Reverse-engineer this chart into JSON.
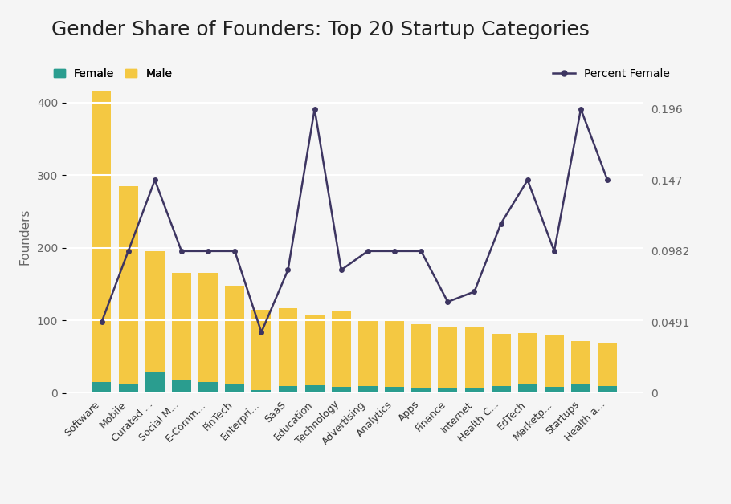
{
  "title": "Gender Share of Founders: Top 20 Startup Categories",
  "categories": [
    "Software",
    "Mobile",
    "Curated ...",
    "Social M...",
    "E-Comm...",
    "FinTech",
    "Enterpri...",
    "SaaS",
    "Education",
    "Technology",
    "Advertising",
    "Analytics",
    "Apps",
    "Finance",
    "Internet",
    "Health C...",
    "EdTech",
    "Marketp...",
    "Startups",
    "Health a..."
  ],
  "female_vals": [
    15,
    12,
    28,
    18,
    15,
    13,
    4,
    10,
    11,
    9,
    10,
    9,
    7,
    6,
    6,
    10,
    13,
    9,
    12,
    10
  ],
  "male_vals": [
    400,
    273,
    167,
    148,
    150,
    135,
    111,
    107,
    97,
    103,
    93,
    91,
    88,
    84,
    84,
    72,
    70,
    71,
    60,
    58
  ],
  "pct_female": [
    0.049,
    0.098,
    0.147,
    0.098,
    0.098,
    0.098,
    0.042,
    0.085,
    0.196,
    0.085,
    0.098,
    0.098,
    0.098,
    0.063,
    0.07,
    0.117,
    0.147,
    0.098,
    0.196,
    0.147
  ],
  "bar_female_color": "#2a9d8f",
  "bar_male_color": "#f4c842",
  "line_color": "#3d3561",
  "background_color": "#f5f5f5",
  "ylabel_left": "Founders",
  "ylim_left": [
    0,
    430
  ],
  "ylim_right": [
    0,
    0.2156
  ],
  "yticks_left": [
    0,
    100,
    200,
    300,
    400
  ],
  "yticks_right": [
    0,
    0.0491,
    0.0982,
    0.147,
    0.196
  ],
  "ytick_labels_right": [
    "0",
    "0.0491",
    "0.0982",
    "0.147",
    "0.196"
  ],
  "title_fontsize": 18,
  "legend_fontsize": 10,
  "axis_label_color": "#666666"
}
